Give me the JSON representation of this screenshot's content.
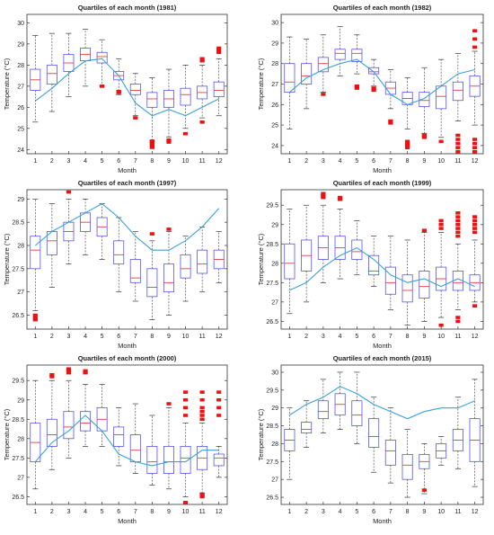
{
  "chart_data": [
    {
      "type": "box",
      "title": "Quartiles of each month (1981)",
      "xlabel": "Month",
      "ylabel": "Temperature (°C)",
      "ylim": [
        23.8,
        30.4
      ],
      "yticks": [
        "24",
        "25",
        "26",
        "27",
        "28",
        "29",
        "30"
      ],
      "categories": [
        "1",
        "2",
        "3",
        "4",
        "5",
        "6",
        "7",
        "8",
        "9",
        "10",
        "11",
        "12"
      ],
      "boxes": [
        {
          "whislo": 25.3,
          "q1": 26.8,
          "med": 27.3,
          "q3": 27.8,
          "whishi": 29.4,
          "fliers": []
        },
        {
          "whislo": 25.8,
          "q1": 27.1,
          "med": 27.6,
          "q3": 28.0,
          "whishi": 29.5,
          "fliers": []
        },
        {
          "whislo": 26.5,
          "q1": 27.7,
          "med": 28.1,
          "q3": 28.5,
          "whishi": 29.5,
          "fliers": []
        },
        {
          "whislo": 27.0,
          "q1": 28.2,
          "med": 28.5,
          "q3": 28.8,
          "whishi": 29.7,
          "fliers": []
        },
        {
          "whislo": 27.0,
          "q1": 28.1,
          "med": 28.4,
          "q3": 28.6,
          "whishi": 29.2,
          "fliers": [
            27.0
          ]
        },
        {
          "whislo": 26.6,
          "q1": 27.3,
          "med": 27.5,
          "q3": 27.7,
          "whishi": 28.3,
          "fliers": [
            26.7,
            26.75
          ]
        },
        {
          "whislo": 25.6,
          "q1": 26.6,
          "med": 26.8,
          "q3": 27.1,
          "whishi": 27.6,
          "fliers": [
            25.5
          ]
        },
        {
          "whislo": 24.4,
          "q1": 26.0,
          "med": 26.4,
          "q3": 26.7,
          "whishi": 27.4,
          "fliers": [
            24.1,
            24.2,
            24.3,
            24.4
          ]
        },
        {
          "whislo": 24.6,
          "q1": 26.0,
          "med": 26.4,
          "q3": 26.8,
          "whishi": 27.8,
          "fliers": [
            24.35,
            24.45
          ]
        },
        {
          "whislo": 25.0,
          "q1": 26.1,
          "med": 26.6,
          "q3": 26.9,
          "whishi": 28.0,
          "fliers": [
            24.75
          ]
        },
        {
          "whislo": 25.5,
          "q1": 26.4,
          "med": 26.7,
          "q3": 27.0,
          "whishi": 28.0,
          "fliers": [
            28.2,
            28.3,
            25.3
          ]
        },
        {
          "whislo": 25.6,
          "q1": 26.5,
          "med": 26.8,
          "q3": 27.2,
          "whishi": 28.3,
          "fliers": [
            28.6,
            28.7,
            28.8
          ]
        }
      ],
      "mean_line": [
        26.3,
        26.9,
        27.6,
        28.2,
        28.3,
        27.5,
        26.2,
        25.6,
        25.9,
        25.6,
        26.0,
        26.4
      ]
    },
    {
      "type": "box",
      "title": "Quartiles of each month (1982)",
      "xlabel": "Month",
      "ylabel": "Temperature (°C)",
      "ylim": [
        23.6,
        30.4
      ],
      "yticks": [
        "24",
        "25",
        "26",
        "27",
        "28",
        "29",
        "30"
      ],
      "categories": [
        "1",
        "2",
        "3",
        "4",
        "5",
        "6",
        "7",
        "8",
        "9",
        "10",
        "11",
        "12"
      ],
      "boxes": [
        {
          "whislo": 24.8,
          "q1": 26.6,
          "med": 27.1,
          "q3": 28.0,
          "whishi": 29.3,
          "fliers": []
        },
        {
          "whislo": 25.8,
          "q1": 27.0,
          "med": 27.4,
          "q3": 28.0,
          "whishi": 29.2,
          "fliers": []
        },
        {
          "whislo": 26.6,
          "q1": 27.6,
          "med": 28.0,
          "q3": 28.3,
          "whishi": 29.4,
          "fliers": [
            26.5
          ]
        },
        {
          "whislo": 27.4,
          "q1": 28.2,
          "med": 28.5,
          "q3": 28.7,
          "whishi": 29.8,
          "fliers": []
        },
        {
          "whislo": 27.5,
          "q1": 28.1,
          "med": 28.5,
          "q3": 28.7,
          "whishi": 29.4,
          "fliers": [
            26.8,
            26.9
          ]
        },
        {
          "whislo": 26.9,
          "q1": 27.5,
          "med": 27.6,
          "q3": 27.8,
          "whishi": 28.2,
          "fliers": [
            26.7,
            26.8
          ]
        },
        {
          "whislo": 25.8,
          "q1": 26.5,
          "med": 26.8,
          "q3": 27.1,
          "whishi": 27.7,
          "fliers": [
            25.1,
            25.2
          ]
        },
        {
          "whislo": 24.8,
          "q1": 26.0,
          "med": 26.3,
          "q3": 26.6,
          "whishi": 27.3,
          "fliers": [
            23.9,
            24.0,
            24.1,
            24.2
          ]
        },
        {
          "whislo": 24.6,
          "q1": 25.9,
          "med": 26.2,
          "q3": 26.6,
          "whishi": 27.8,
          "fliers": [
            24.4,
            24.5
          ]
        },
        {
          "whislo": 24.4,
          "q1": 25.8,
          "med": 26.4,
          "q3": 26.9,
          "whishi": 28.2,
          "fliers": [
            24.2
          ]
        },
        {
          "whislo": 25.2,
          "q1": 26.2,
          "med": 26.7,
          "q3": 27.1,
          "whishi": 28.5,
          "fliers": [
            23.7,
            23.9,
            24.1,
            24.3,
            24.5
          ]
        },
        {
          "whislo": 25.0,
          "q1": 26.4,
          "med": 26.9,
          "q3": 27.4,
          "whishi": 28.6,
          "fliers": [
            28.8,
            29.2,
            29.6,
            23.7,
            23.9,
            24.1,
            24.3
          ]
        }
      ],
      "mean_line": [
        26.6,
        27.3,
        27.7,
        28.0,
        28.2,
        27.6,
        26.5,
        26.0,
        26.3,
        26.9,
        27.5,
        27.7
      ]
    },
    {
      "type": "box",
      "title": "Quartiles of each month (1997)",
      "xlabel": "Month",
      "ylabel": "Temperature (°C)",
      "ylim": [
        26.2,
        29.2
      ],
      "yticks": [
        "26.5",
        "27",
        "27.5",
        "28",
        "28.5",
        "29"
      ],
      "categories": [
        "1",
        "2",
        "3",
        "4",
        "5",
        "6",
        "7",
        "8",
        "9",
        "10",
        "11",
        "12"
      ],
      "boxes": [
        {
          "whislo": 26.6,
          "q1": 27.5,
          "med": 27.9,
          "q3": 28.2,
          "whishi": 29.0,
          "fliers": [
            26.4,
            26.45,
            26.5
          ]
        },
        {
          "whislo": 27.1,
          "q1": 27.8,
          "med": 28.1,
          "q3": 28.3,
          "whishi": 28.9,
          "fliers": []
        },
        {
          "whislo": 27.6,
          "q1": 28.1,
          "med": 28.3,
          "q3": 28.5,
          "whishi": 29.0,
          "fliers": [
            29.15
          ]
        },
        {
          "whislo": 27.8,
          "q1": 28.3,
          "med": 28.5,
          "q3": 28.7,
          "whishi": 29.0,
          "fliers": []
        },
        {
          "whislo": 27.7,
          "q1": 28.2,
          "med": 28.4,
          "q3": 28.6,
          "whishi": 28.9,
          "fliers": []
        },
        {
          "whislo": 27.0,
          "q1": 27.6,
          "med": 27.8,
          "q3": 28.1,
          "whishi": 28.6,
          "fliers": []
        },
        {
          "whislo": 26.8,
          "q1": 27.2,
          "med": 27.3,
          "q3": 27.7,
          "whishi": 28.3,
          "fliers": []
        },
        {
          "whislo": 26.4,
          "q1": 26.9,
          "med": 27.1,
          "q3": 27.5,
          "whishi": 28.1,
          "fliers": [
            28.25
          ]
        },
        {
          "whislo": 26.5,
          "q1": 27.0,
          "med": 27.2,
          "q3": 27.6,
          "whishi": 28.3,
          "fliers": [
            28.35
          ]
        },
        {
          "whislo": 26.8,
          "q1": 27.3,
          "med": 27.5,
          "q3": 27.8,
          "whishi": 28.2,
          "fliers": []
        },
        {
          "whislo": 27.0,
          "q1": 27.4,
          "med": 27.6,
          "q3": 27.9,
          "whishi": 28.4,
          "fliers": []
        },
        {
          "whislo": 27.2,
          "q1": 27.5,
          "med": 27.7,
          "q3": 27.9,
          "whishi": 28.3,
          "fliers": []
        }
      ],
      "mean_line": [
        28.0,
        28.3,
        28.5,
        28.7,
        28.9,
        28.6,
        28.2,
        27.9,
        27.9,
        28.1,
        28.4,
        28.8
      ]
    },
    {
      "type": "box",
      "title": "Quartiles of each month (1999)",
      "xlabel": "Month",
      "ylabel": "Temperature (°C)",
      "ylim": [
        26.3,
        29.9
      ],
      "yticks": [
        "26.5",
        "27",
        "27.5",
        "28",
        "28.5",
        "29",
        "29.5"
      ],
      "categories": [
        "1",
        "2",
        "3",
        "4",
        "5",
        "6",
        "7",
        "8",
        "9",
        "10",
        "11",
        "12"
      ],
      "boxes": [
        {
          "whislo": 26.7,
          "q1": 27.6,
          "med": 28.0,
          "q3": 28.5,
          "whishi": 29.4,
          "fliers": []
        },
        {
          "whislo": 27.0,
          "q1": 27.8,
          "med": 28.2,
          "q3": 28.6,
          "whishi": 29.5,
          "fliers": []
        },
        {
          "whislo": 27.5,
          "q1": 28.1,
          "med": 28.4,
          "q3": 28.7,
          "whishi": 29.5,
          "fliers": [
            29.7,
            29.75,
            29.8
          ]
        },
        {
          "whislo": 27.6,
          "q1": 28.1,
          "med": 28.4,
          "q3": 28.7,
          "whishi": 29.4,
          "fliers": [
            29.65,
            29.7
          ]
        },
        {
          "whislo": 27.7,
          "q1": 28.1,
          "med": 28.3,
          "q3": 28.6,
          "whishi": 29.1,
          "fliers": []
        },
        {
          "whislo": 27.4,
          "q1": 27.7,
          "med": 27.8,
          "q3": 28.2,
          "whishi": 28.7,
          "fliers": []
        },
        {
          "whislo": 26.8,
          "q1": 27.2,
          "med": 27.5,
          "q3": 27.9,
          "whishi": 28.7,
          "fliers": []
        },
        {
          "whislo": 26.4,
          "q1": 27.0,
          "med": 27.3,
          "q3": 27.7,
          "whishi": 28.6,
          "fliers": []
        },
        {
          "whislo": 26.5,
          "q1": 27.1,
          "med": 27.4,
          "q3": 27.8,
          "whishi": 28.8,
          "fliers": [
            28.85
          ]
        },
        {
          "whislo": 26.6,
          "q1": 27.3,
          "med": 27.6,
          "q3": 27.9,
          "whishi": 28.8,
          "fliers": [
            28.9,
            29.0,
            29.1,
            26.4
          ]
        },
        {
          "whislo": 26.8,
          "q1": 27.3,
          "med": 27.5,
          "q3": 27.8,
          "whishi": 28.5,
          "fliers": [
            28.7,
            28.8,
            28.9,
            29.0,
            29.1,
            29.2,
            29.3,
            26.5,
            26.6
          ]
        },
        {
          "whislo": 27.0,
          "q1": 27.3,
          "med": 27.5,
          "q3": 27.7,
          "whishi": 28.6,
          "fliers": [
            28.8,
            28.9,
            29.0,
            29.1,
            29.2,
            26.9
          ]
        }
      ],
      "mean_line": [
        27.3,
        27.5,
        27.9,
        28.2,
        28.4,
        28.1,
        27.7,
        27.5,
        27.6,
        27.4,
        27.6,
        27.4
      ]
    },
    {
      "type": "box",
      "title": "Quartiles of each month (2000)",
      "xlabel": "Month",
      "ylabel": "Temperature (°C)",
      "ylim": [
        26.3,
        29.9
      ],
      "yticks": [
        "26.5",
        "27",
        "27.5",
        "28",
        "28.5",
        "29",
        "29.5"
      ],
      "categories": [
        "1",
        "2",
        "3",
        "4",
        "5",
        "6",
        "7",
        "8",
        "9",
        "10",
        "11",
        "12"
      ],
      "boxes": [
        {
          "whislo": 26.7,
          "q1": 27.4,
          "med": 27.9,
          "q3": 28.4,
          "whishi": 29.5,
          "fliers": []
        },
        {
          "whislo": 27.2,
          "q1": 27.8,
          "med": 28.1,
          "q3": 28.5,
          "whishi": 29.5,
          "fliers": [
            29.6,
            29.65
          ]
        },
        {
          "whislo": 27.5,
          "q1": 28.0,
          "med": 28.3,
          "q3": 28.7,
          "whishi": 29.5,
          "fliers": [
            29.7,
            29.75,
            29.8
          ]
        },
        {
          "whislo": 27.8,
          "q1": 28.2,
          "med": 28.4,
          "q3": 28.7,
          "whishi": 29.4,
          "fliers": [
            29.7,
            29.75
          ]
        },
        {
          "whislo": 27.8,
          "q1": 28.2,
          "med": 28.5,
          "q3": 28.8,
          "whishi": 29.4,
          "fliers": []
        },
        {
          "whislo": 27.3,
          "q1": 27.8,
          "med": 28.1,
          "q3": 28.3,
          "whishi": 28.8,
          "fliers": []
        },
        {
          "whislo": 27.1,
          "q1": 27.4,
          "med": 27.7,
          "q3": 28.1,
          "whishi": 28.9,
          "fliers": []
        },
        {
          "whislo": 26.8,
          "q1": 27.1,
          "med": 27.4,
          "q3": 27.8,
          "whishi": 28.6,
          "fliers": []
        },
        {
          "whislo": 26.7,
          "q1": 27.1,
          "med": 27.4,
          "q3": 27.8,
          "whishi": 28.8,
          "fliers": [
            28.9
          ]
        },
        {
          "whislo": 26.5,
          "q1": 27.1,
          "med": 27.5,
          "q3": 27.8,
          "whishi": 28.4,
          "fliers": [
            28.6,
            28.8,
            29.0,
            29.2,
            26.35
          ]
        },
        {
          "whislo": 26.6,
          "q1": 27.2,
          "med": 27.5,
          "q3": 27.8,
          "whishi": 28.4,
          "fliers": [
            28.5,
            28.6,
            28.7,
            28.8,
            29.0,
            29.2,
            26.5,
            26.55
          ]
        },
        {
          "whislo": 27.0,
          "q1": 27.3,
          "med": 27.5,
          "q3": 27.6,
          "whishi": 27.8,
          "fliers": [
            28.6,
            28.8,
            29.0,
            29.2
          ]
        }
      ],
      "mean_line": [
        27.4,
        27.9,
        28.2,
        28.6,
        28.2,
        27.6,
        27.4,
        27.3,
        27.4,
        27.4,
        27.7,
        27.7
      ]
    },
    {
      "type": "box",
      "title": "Quartiles of each month (2015)",
      "xlabel": "Month",
      "ylabel": "Temperature (°C)",
      "ylim": [
        26.3,
        30.2
      ],
      "yticks": [
        "26.5",
        "27",
        "27.5",
        "28",
        "28.5",
        "29",
        "29.5",
        "30"
      ],
      "categories": [
        "1",
        "2",
        "3",
        "4",
        "5",
        "6",
        "7",
        "8",
        "9",
        "10",
        "11",
        "12"
      ],
      "boxes": [
        {
          "whislo": 27.0,
          "q1": 27.8,
          "med": 28.1,
          "q3": 28.4,
          "whishi": 29.0,
          "fliers": []
        },
        {
          "whislo": 27.9,
          "q1": 28.3,
          "med": 28.4,
          "q3": 28.6,
          "whishi": 29.2,
          "fliers": []
        },
        {
          "whislo": 28.3,
          "q1": 28.7,
          "med": 28.9,
          "q3": 29.2,
          "whishi": 29.8,
          "fliers": []
        },
        {
          "whislo": 28.4,
          "q1": 28.8,
          "med": 29.1,
          "q3": 29.4,
          "whishi": 30.0,
          "fliers": []
        },
        {
          "whislo": 28.0,
          "q1": 28.5,
          "med": 28.8,
          "q3": 29.2,
          "whishi": 30.0,
          "fliers": []
        },
        {
          "whislo": 27.2,
          "q1": 27.9,
          "med": 28.2,
          "q3": 28.7,
          "whishi": 29.3,
          "fliers": []
        },
        {
          "whislo": 26.9,
          "q1": 27.4,
          "med": 27.8,
          "q3": 28.1,
          "whishi": 29.0,
          "fliers": []
        },
        {
          "whislo": 26.5,
          "q1": 27.0,
          "med": 27.4,
          "q3": 27.7,
          "whishi": 28.4,
          "fliers": []
        },
        {
          "whislo": 26.6,
          "q1": 27.3,
          "med": 27.5,
          "q3": 27.7,
          "whishi": 28.0,
          "fliers": [
            26.7
          ]
        },
        {
          "whislo": 27.4,
          "q1": 27.6,
          "med": 27.8,
          "q3": 28.0,
          "whishi": 28.2,
          "fliers": []
        },
        {
          "whislo": 27.3,
          "q1": 27.8,
          "med": 28.1,
          "q3": 28.4,
          "whishi": 29.3,
          "fliers": []
        },
        {
          "whislo": 26.8,
          "q1": 27.5,
          "med": 28.1,
          "q3": 28.7,
          "whishi": 29.8,
          "fliers": []
        }
      ],
      "mean_line": [
        28.8,
        29.1,
        29.3,
        29.6,
        29.4,
        29.1,
        28.9,
        28.7,
        28.9,
        29.0,
        29.0,
        29.2
      ]
    }
  ],
  "style": {
    "box_color": "#5555ee",
    "median_color": "#e0413c",
    "outlier_color": "#ee1111",
    "line_color": "#3ba1d9",
    "whisker_color": "#333333",
    "axis_color": "#333333"
  }
}
